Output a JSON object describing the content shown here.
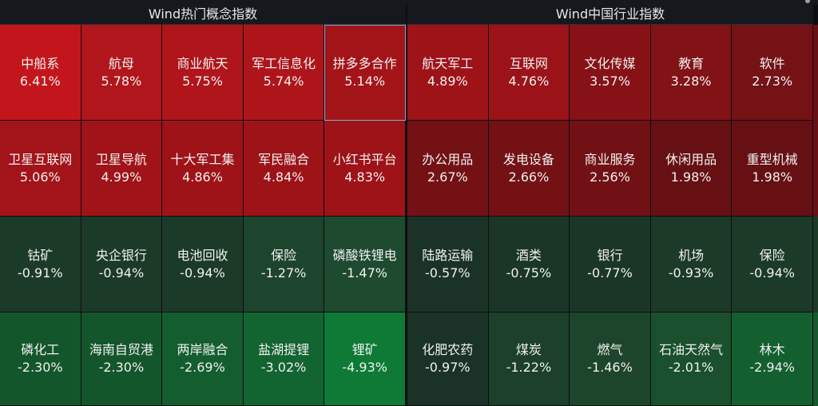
{
  "top_fragment": {
    "left": "",
    "right": ""
  },
  "left_panel": {
    "title": "Wind热门概念指数",
    "cells": [
      {
        "name": "中船系",
        "pct": "6.41%",
        "color": "#c3161c"
      },
      {
        "name": "航母",
        "pct": "5.78%",
        "color": "#b0161b"
      },
      {
        "name": "商业航天",
        "pct": "5.75%",
        "color": "#af151a"
      },
      {
        "name": "军工信息化",
        "pct": "5.74%",
        "color": "#ae151a"
      },
      {
        "name": "拼多多合作",
        "pct": "5.14%",
        "color": "#a31419",
        "selected": true
      },
      {
        "name": "卫星互联网",
        "pct": "5.06%",
        "color": "#a21419"
      },
      {
        "name": "卫星导航",
        "pct": "4.99%",
        "color": "#a01318"
      },
      {
        "name": "十大军工集",
        "pct": "4.86%",
        "color": "#9e1318"
      },
      {
        "name": "军民融合",
        "pct": "4.84%",
        "color": "#9d1318"
      },
      {
        "name": "小红书平台",
        "pct": "4.83%",
        "color": "#9d1318"
      },
      {
        "name": "钴矿",
        "pct": "-0.91%",
        "color": "#1c3a28"
      },
      {
        "name": "央企银行",
        "pct": "-0.94%",
        "color": "#1c3a28"
      },
      {
        "name": "电池回收",
        "pct": "-0.94%",
        "color": "#1c3a28"
      },
      {
        "name": "保险",
        "pct": "-1.27%",
        "color": "#1d442d"
      },
      {
        "name": "磷酸铁锂电",
        "pct": "-1.47%",
        "color": "#1e4a30"
      },
      {
        "name": "磷化工",
        "pct": "-2.30%",
        "color": "#14562c"
      },
      {
        "name": "海南自贸港",
        "pct": "-2.30%",
        "color": "#14562c"
      },
      {
        "name": "两岸融合",
        "pct": "-2.69%",
        "color": "#135d2f"
      },
      {
        "name": "盐湖提锂",
        "pct": "-3.02%",
        "color": "#126431"
      },
      {
        "name": "锂矿",
        "pct": "-4.93%",
        "color": "#0e7a36"
      }
    ]
  },
  "right_panel": {
    "title": "Wind中国行业指数",
    "cells": [
      {
        "name": "航天军工",
        "pct": "4.89%",
        "color": "#9e1318"
      },
      {
        "name": "互联网",
        "pct": "4.76%",
        "color": "#9b1318"
      },
      {
        "name": "文化传媒",
        "pct": "3.57%",
        "color": "#861217"
      },
      {
        "name": "教育",
        "pct": "3.28%",
        "color": "#811216"
      },
      {
        "name": "软件",
        "pct": "2.73%",
        "color": "#751216"
      },
      {
        "name": "办公用品",
        "pct": "2.67%",
        "color": "#731115"
      },
      {
        "name": "发电设备",
        "pct": "2.66%",
        "color": "#731115"
      },
      {
        "name": "商业服务",
        "pct": "2.56%",
        "color": "#711115"
      },
      {
        "name": "休闲用品",
        "pct": "1.98%",
        "color": "#661014"
      },
      {
        "name": "重型机械",
        "pct": "1.98%",
        "color": "#661014"
      },
      {
        "name": "陆路运输",
        "pct": "-0.57%",
        "color": "#1b3326"
      },
      {
        "name": "酒类",
        "pct": "-0.75%",
        "color": "#1b3627"
      },
      {
        "name": "银行",
        "pct": "-0.77%",
        "color": "#1b3627"
      },
      {
        "name": "机场",
        "pct": "-0.93%",
        "color": "#1c3a28"
      },
      {
        "name": "保险",
        "pct": "-0.94%",
        "color": "#1c3a28"
      },
      {
        "name": "化肥农药",
        "pct": "-0.97%",
        "color": "#1b3326"
      },
      {
        "name": "煤炭",
        "pct": "-1.22%",
        "color": "#1c4029"
      },
      {
        "name": "燃气",
        "pct": "-1.46%",
        "color": "#1d452b"
      },
      {
        "name": "石油天然气",
        "pct": "-2.01%",
        "color": "#1a502d"
      },
      {
        "name": "林木",
        "pct": "-2.94%",
        "color": "#135f30"
      }
    ]
  },
  "side_strip_colors": [
    "#6a1014",
    "#6a1014",
    "#1b3a28",
    "#135a2e"
  ]
}
